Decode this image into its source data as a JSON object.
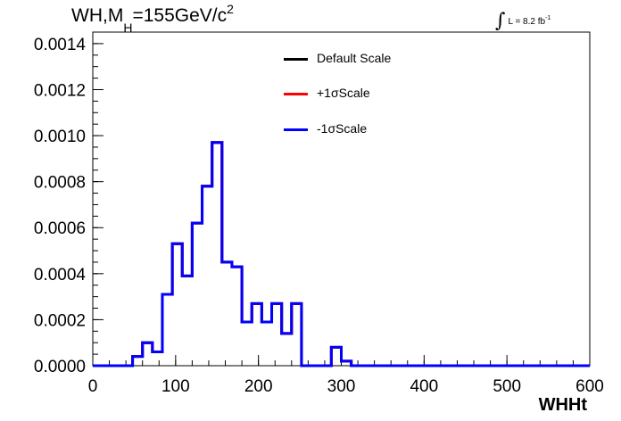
{
  "title": {
    "prefix": "WH,M",
    "subscript": "H",
    "value": "=155GeV/c",
    "superscript": "2"
  },
  "lumi": {
    "integral": "∫",
    "text": "L = 8.2 fb",
    "superscript": "-1"
  },
  "legend": {
    "items": [
      {
        "label": "Default Scale",
        "color": "#000000"
      },
      {
        "label": "+1σScale",
        "color": "#ff0000"
      },
      {
        "label": "-1σScale",
        "color": "#0000ff"
      }
    ]
  },
  "chart_data": {
    "type": "line",
    "style": "step-histogram",
    "xlabel": "WHHt",
    "xlim": [
      0,
      600
    ],
    "ylim": [
      0,
      0.00145
    ],
    "xticks": [
      "0",
      "100",
      "200",
      "300",
      "400",
      "500",
      "600"
    ],
    "yticks": [
      "0.0000",
      "0.0002",
      "0.0004",
      "0.0006",
      "0.0008",
      "0.0010",
      "0.0012",
      "0.0014"
    ],
    "bin_width": 12,
    "bin_edges_start": 0,
    "series": [
      {
        "name": "Default Scale",
        "color": "#000000",
        "values": [
          0,
          0,
          0,
          0,
          4e-05,
          0.0001,
          6e-05,
          0.00031,
          0.00053,
          0.00039,
          0.00062,
          0.00078,
          0.00097,
          0.00045,
          0.00043,
          0.00019,
          0.00027,
          0.00019,
          0.00027,
          0.00014,
          0.00027,
          0,
          0,
          0,
          8e-05,
          2e-05,
          0,
          0,
          0,
          0,
          0,
          0,
          0,
          0,
          0,
          0,
          0,
          0,
          0,
          0,
          0,
          0,
          0,
          0,
          0,
          0,
          0,
          0,
          0,
          0
        ]
      },
      {
        "name": "+1σScale",
        "color": "#ff0000",
        "values": [
          0,
          0,
          0,
          0,
          4e-05,
          0.0001,
          6e-05,
          0.00031,
          0.00053,
          0.00039,
          0.00062,
          0.00078,
          0.00097,
          0.00045,
          0.00043,
          0.00019,
          0.00027,
          0.00019,
          0.00027,
          0.00014,
          0.00027,
          0,
          0,
          0,
          8e-05,
          2e-05,
          0,
          0,
          0,
          0,
          0,
          0,
          0,
          0,
          0,
          0,
          0,
          0,
          0,
          0,
          0,
          0,
          0,
          0,
          0,
          0,
          0,
          0,
          0,
          0
        ]
      },
      {
        "name": "-1σScale",
        "color": "#0000ff",
        "values": [
          0,
          0,
          0,
          0,
          4e-05,
          0.0001,
          6e-05,
          0.00031,
          0.00053,
          0.00039,
          0.00062,
          0.00078,
          0.00097,
          0.00045,
          0.00043,
          0.00019,
          0.00027,
          0.00019,
          0.00027,
          0.00014,
          0.00027,
          0,
          0,
          0,
          8e-05,
          2e-05,
          0,
          0,
          0,
          0,
          0,
          0,
          0,
          0,
          0,
          0,
          0,
          0,
          0,
          0,
          0,
          0,
          0,
          0,
          0,
          0,
          0,
          0,
          0,
          0
        ]
      }
    ]
  }
}
